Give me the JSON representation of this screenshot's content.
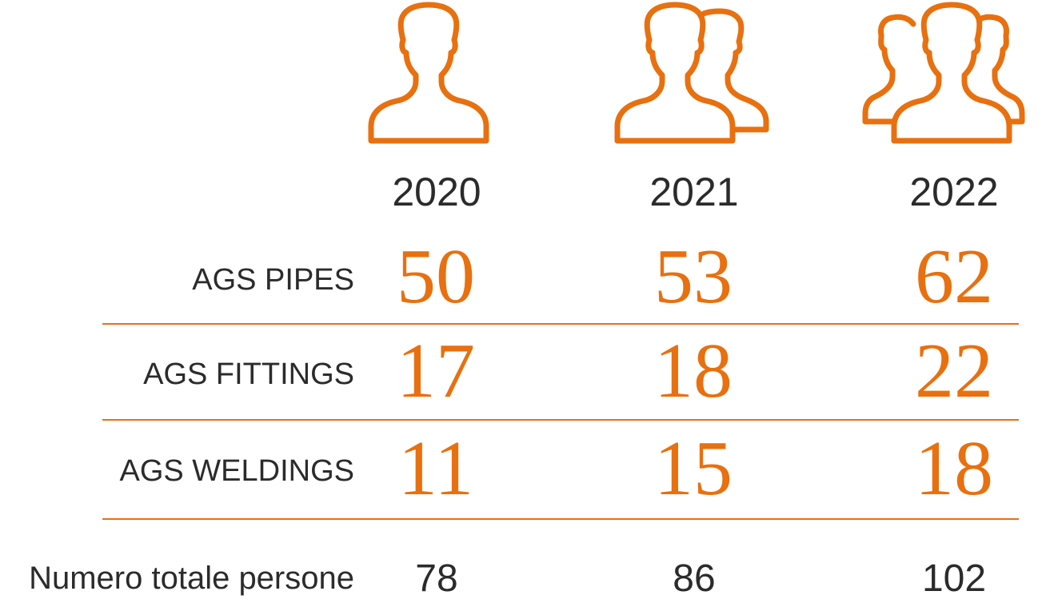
{
  "chart_data": {
    "type": "table",
    "columns": [
      "2020",
      "2021",
      "2022"
    ],
    "icons": [
      "person-icon",
      "two-people-icon",
      "three-people-icon"
    ],
    "rows": [
      {
        "label": "AGS PIPES",
        "values": [
          50,
          53,
          62
        ]
      },
      {
        "label": "AGS FITTINGS",
        "values": [
          17,
          18,
          22
        ]
      },
      {
        "label": "AGS WELDINGS",
        "values": [
          11,
          15,
          18
        ]
      }
    ],
    "total": {
      "label": "Numero totale persone",
      "values": [
        78,
        86,
        102
      ]
    },
    "accent_color": "#e8700f",
    "text_color": "#2b2b2b"
  }
}
